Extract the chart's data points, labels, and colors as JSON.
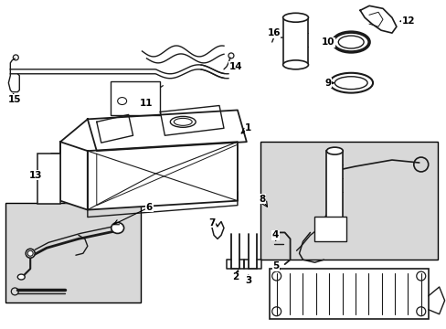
{
  "bg_color": "#ffffff",
  "line_color": "#1a1a1a",
  "box_fill": "#d8d8d8",
  "figsize": [
    4.89,
    3.6
  ],
  "dpi": 100
}
